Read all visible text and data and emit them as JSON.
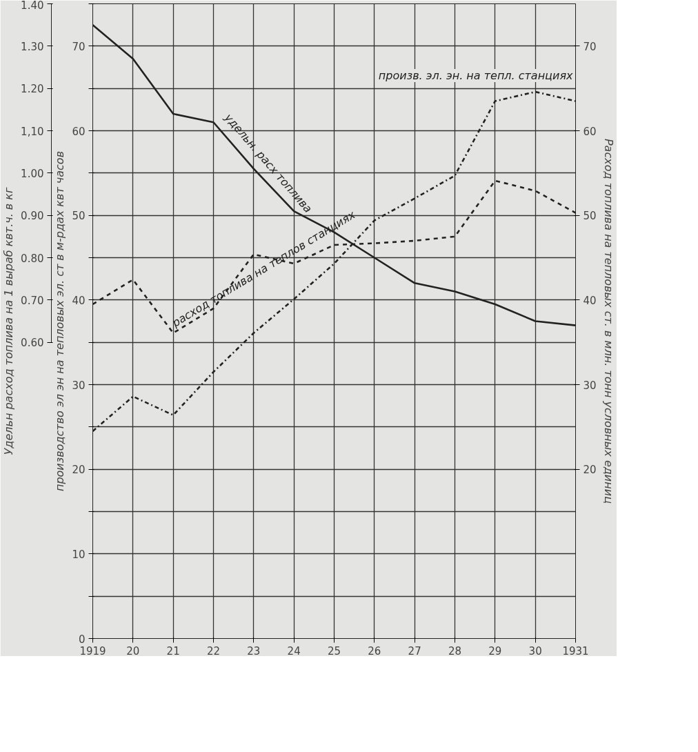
{
  "chart_data": {
    "type": "line",
    "x": [
      1919,
      1920,
      1921,
      1922,
      1923,
      1924,
      1925,
      1926,
      1927,
      1928,
      1929,
      1930,
      1931
    ],
    "xlim": [
      1919,
      1931
    ],
    "xticks": [
      {
        "value": 1919,
        "label": "1919"
      },
      {
        "value": 1920,
        "label": "20"
      },
      {
        "value": 1921,
        "label": "21"
      },
      {
        "value": 1922,
        "label": "22"
      },
      {
        "value": 1923,
        "label": "23"
      },
      {
        "value": 1924,
        "label": "24"
      },
      {
        "value": 1925,
        "label": "25"
      },
      {
        "value": 1926,
        "label": "26"
      },
      {
        "value": 1927,
        "label": "27"
      },
      {
        "value": 1928,
        "label": "28"
      },
      {
        "value": 1929,
        "label": "29"
      },
      {
        "value": 1930,
        "label": "30"
      },
      {
        "value": 1931,
        "label": "1931"
      }
    ],
    "ylim": [
      0,
      75
    ],
    "yticks": [
      0,
      {
        "value": 5,
        "label": null
      },
      10,
      {
        "value": 15,
        "label": null
      },
      20,
      {
        "value": 25,
        "label": null
      },
      30,
      {
        "value": 35,
        "label": null
      },
      40,
      {
        "value": 45,
        "label": null
      },
      50,
      {
        "value": 55,
        "label": null
      },
      60,
      {
        "value": 65,
        "label": null
      },
      70,
      {
        "value": 75,
        "label": null
      }
    ],
    "ylabel": "производство эл эн на тепловых эл. ст в м-рдах квт часов",
    "y2lim": [
      0,
      75
    ],
    "y2ticks": [
      20,
      30,
      40,
      50,
      60,
      70
    ],
    "y2label": "Расход топлива на тепловых ст. в млн. тонн условных единиц",
    "y3lim": [
      -0.1,
      1.4
    ],
    "y3ticks": [
      {
        "value": 0.6,
        "label": "0.60"
      },
      {
        "value": 0.7,
        "label": "0.70"
      },
      {
        "value": 0.8,
        "label": "0.80"
      },
      {
        "value": 0.9,
        "label": "0.90"
      },
      {
        "value": 1.0,
        "label": "1.00"
      },
      {
        "value": 1.1,
        "label": "1,10"
      },
      {
        "value": 1.2,
        "label": "1.20"
      },
      {
        "value": 1.3,
        "label": "1.30"
      },
      {
        "value": 1.4,
        "label": "1.40"
      }
    ],
    "y3label": "Удельн расход топлива на 1 выраб квт.ч. в кг",
    "grid": true,
    "series": [
      {
        "name": "удельн. расх топлива",
        "color": "#222222",
        "line_style": "solid",
        "axis": "y3",
        "values": [
          1.35,
          1.27,
          1.14,
          1.12,
          1.01,
          0.91,
          0.86,
          0.8,
          0.74,
          0.72,
          0.69,
          0.65,
          0.64
        ]
      },
      {
        "name": "расход топлива на теплов станциях",
        "color": "#222222",
        "line_style": "dashed",
        "axis": "y2",
        "values": [
          39.5,
          42.4,
          36.1,
          39.0,
          45.4,
          44.3,
          46.5,
          46.7,
          47.0,
          47.5,
          54.1,
          52.9,
          50.3
        ]
      },
      {
        "name": "произв. эл. эн. на тепл. станциях",
        "color": "#222222",
        "line_style": "dashdot",
        "values": [
          24.5,
          28.6,
          26.4,
          31.5,
          36.1,
          40.1,
          44.3,
          49.4,
          52.0,
          54.7,
          63.5,
          64.6,
          63.5
        ]
      }
    ]
  }
}
